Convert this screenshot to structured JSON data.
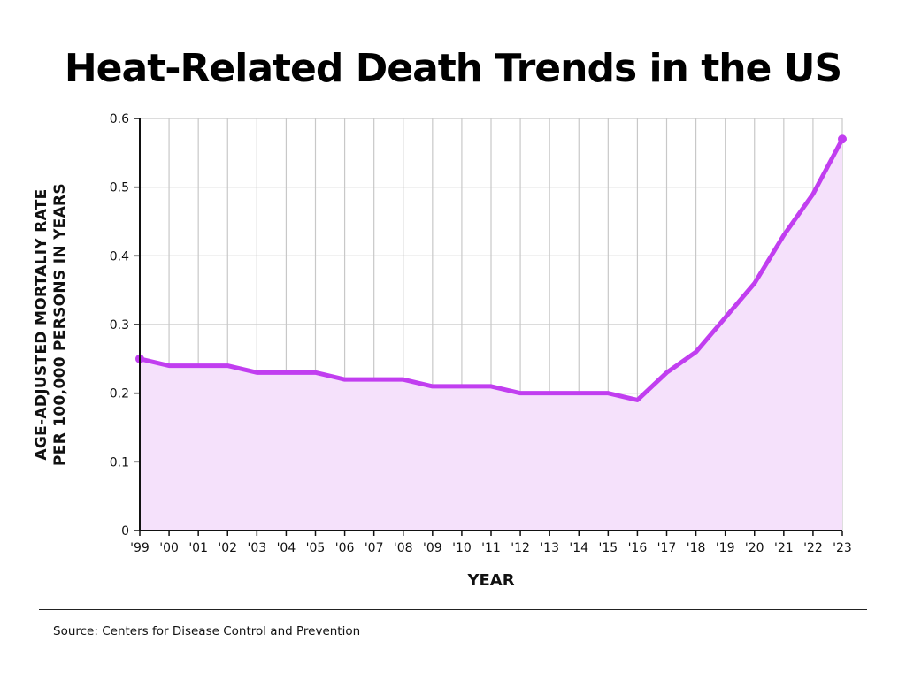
{
  "chart_data": {
    "type": "area",
    "title": "Heat-Related Death Trends in the US",
    "xlabel": "YEAR",
    "ylabel_lines": [
      "AGE-ADJUSTED MORTALIY RATE",
      "PER 100,000 PERSONS IN YEARS"
    ],
    "categories": [
      "'99",
      "'00",
      "'01",
      "'02",
      "'03",
      "'04",
      "'05",
      "'06",
      "'07",
      "'08",
      "'09",
      "'10",
      "'11",
      "'12",
      "'13",
      "'14",
      "'15",
      "'16",
      "'17",
      "'18",
      "'19",
      "'20",
      "'21",
      "'22",
      "'23"
    ],
    "values": [
      0.25,
      0.24,
      0.24,
      0.24,
      0.23,
      0.23,
      0.23,
      0.22,
      0.22,
      0.22,
      0.21,
      0.21,
      0.21,
      0.2,
      0.2,
      0.2,
      0.2,
      0.19,
      0.23,
      0.26,
      0.31,
      0.36,
      0.43,
      0.49,
      0.57
    ],
    "ylim": [
      0,
      0.6
    ],
    "yticks": [
      0,
      0.1,
      0.2,
      0.3,
      0.4,
      0.5,
      0.6
    ],
    "ytick_labels": [
      "0",
      "0.1",
      "0.2",
      "0.3",
      "0.4",
      "0.5",
      "0.6"
    ],
    "grid": true,
    "colors": {
      "line": "#c13ef0",
      "fill": "#f5e1fb",
      "grid": "#c8c8c8",
      "axis": "#111111"
    }
  },
  "source": "Source: Centers for Disease Control and Prevention"
}
